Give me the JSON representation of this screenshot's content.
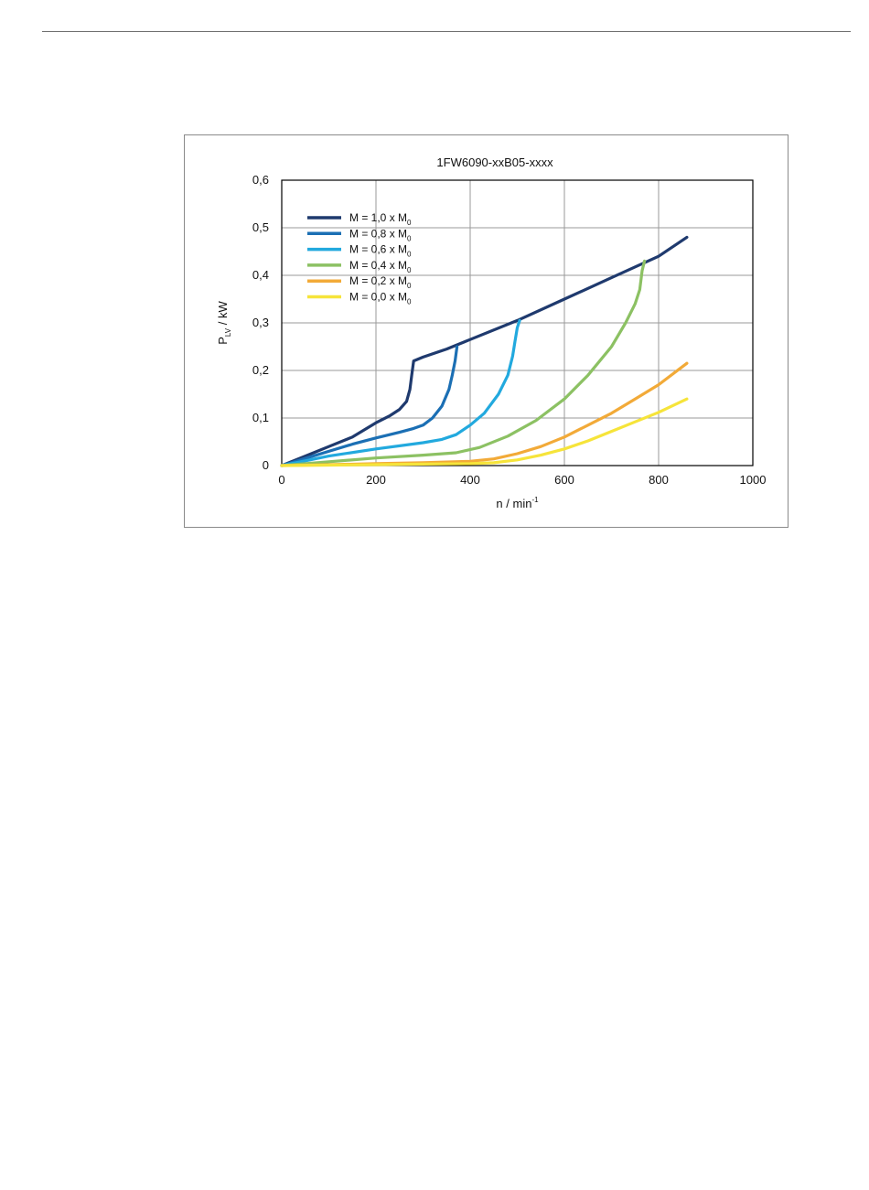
{
  "chart_data": {
    "type": "line",
    "title": "1FW6090-xxB05-xxxx",
    "xlabel": {
      "main": "n / min",
      "sup": "-1"
    },
    "ylabel": {
      "main": "P",
      "sub": "LV",
      "tail": " / kW"
    },
    "xlim": [
      0,
      1000
    ],
    "ylim": [
      0,
      0.6
    ],
    "x_ticks": [
      "0",
      "200",
      "400",
      "600",
      "800",
      "1000"
    ],
    "x_tick_values": [
      0,
      200,
      400,
      600,
      800,
      1000
    ],
    "y_ticks": [
      "0",
      "0,1",
      "0,2",
      "0,3",
      "0,4",
      "0,5",
      "0,6"
    ],
    "y_tick_values": [
      0,
      0.1,
      0.2,
      0.3,
      0.4,
      0.5,
      0.6
    ],
    "grid": true,
    "legend_position": "top-left",
    "series": [
      {
        "name": {
          "main": "M = 1,0 x M",
          "sub": "0"
        },
        "color": "#1f3a6e",
        "points": [
          [
            0,
            0
          ],
          [
            50,
            0.02
          ],
          [
            100,
            0.04
          ],
          [
            150,
            0.06
          ],
          [
            200,
            0.09
          ],
          [
            230,
            0.105
          ],
          [
            250,
            0.118
          ],
          [
            265,
            0.135
          ],
          [
            272,
            0.16
          ],
          [
            276,
            0.19
          ],
          [
            280,
            0.22
          ],
          [
            300,
            0.228
          ],
          [
            350,
            0.245
          ],
          [
            400,
            0.265
          ],
          [
            500,
            0.305
          ],
          [
            600,
            0.35
          ],
          [
            700,
            0.395
          ],
          [
            800,
            0.44
          ],
          [
            860,
            0.48
          ]
        ]
      },
      {
        "name": {
          "main": "M = 0,8 x M",
          "sub": "0"
        },
        "color": "#1b6fb4",
        "points": [
          [
            0,
            0
          ],
          [
            50,
            0.015
          ],
          [
            100,
            0.03
          ],
          [
            150,
            0.045
          ],
          [
            200,
            0.058
          ],
          [
            250,
            0.07
          ],
          [
            280,
            0.078
          ],
          [
            300,
            0.085
          ],
          [
            320,
            0.1
          ],
          [
            340,
            0.125
          ],
          [
            355,
            0.16
          ],
          [
            362,
            0.19
          ],
          [
            368,
            0.22
          ],
          [
            372,
            0.25
          ]
        ]
      },
      {
        "name": {
          "main": "M = 0,6 x M",
          "sub": "0"
        },
        "color": "#22a9de",
        "points": [
          [
            0,
            0
          ],
          [
            50,
            0.01
          ],
          [
            100,
            0.02
          ],
          [
            200,
            0.035
          ],
          [
            300,
            0.048
          ],
          [
            340,
            0.055
          ],
          [
            370,
            0.065
          ],
          [
            400,
            0.085
          ],
          [
            430,
            0.11
          ],
          [
            460,
            0.15
          ],
          [
            480,
            0.19
          ],
          [
            490,
            0.23
          ],
          [
            495,
            0.26
          ],
          [
            500,
            0.29
          ],
          [
            505,
            0.305
          ]
        ]
      },
      {
        "name": {
          "main": "M = 0,4 x M",
          "sub": "0"
        },
        "color": "#8cc163",
        "points": [
          [
            0,
            0
          ],
          [
            100,
            0.008
          ],
          [
            200,
            0.016
          ],
          [
            300,
            0.022
          ],
          [
            370,
            0.027
          ],
          [
            420,
            0.038
          ],
          [
            480,
            0.062
          ],
          [
            540,
            0.095
          ],
          [
            600,
            0.14
          ],
          [
            650,
            0.19
          ],
          [
            700,
            0.25
          ],
          [
            730,
            0.3
          ],
          [
            750,
            0.34
          ],
          [
            760,
            0.37
          ],
          [
            765,
            0.41
          ],
          [
            770,
            0.43
          ]
        ]
      },
      {
        "name": {
          "main": "M = 0,2 x M",
          "sub": "0"
        },
        "color": "#f2aa38",
        "points": [
          [
            0,
            0
          ],
          [
            100,
            0.002
          ],
          [
            200,
            0.004
          ],
          [
            300,
            0.006
          ],
          [
            400,
            0.009
          ],
          [
            450,
            0.014
          ],
          [
            500,
            0.025
          ],
          [
            550,
            0.04
          ],
          [
            600,
            0.06
          ],
          [
            650,
            0.085
          ],
          [
            700,
            0.11
          ],
          [
            750,
            0.14
          ],
          [
            800,
            0.17
          ],
          [
            860,
            0.215
          ]
        ]
      },
      {
        "name": {
          "main": "M = 0,0 x M",
          "sub": "0"
        },
        "color": "#f6e43a",
        "points": [
          [
            0,
            0
          ],
          [
            100,
            0.001
          ],
          [
            200,
            0.002
          ],
          [
            300,
            0.003
          ],
          [
            400,
            0.004
          ],
          [
            450,
            0.006
          ],
          [
            500,
            0.012
          ],
          [
            550,
            0.022
          ],
          [
            600,
            0.035
          ],
          [
            650,
            0.052
          ],
          [
            700,
            0.072
          ],
          [
            750,
            0.092
          ],
          [
            800,
            0.112
          ],
          [
            860,
            0.14
          ]
        ]
      }
    ]
  }
}
